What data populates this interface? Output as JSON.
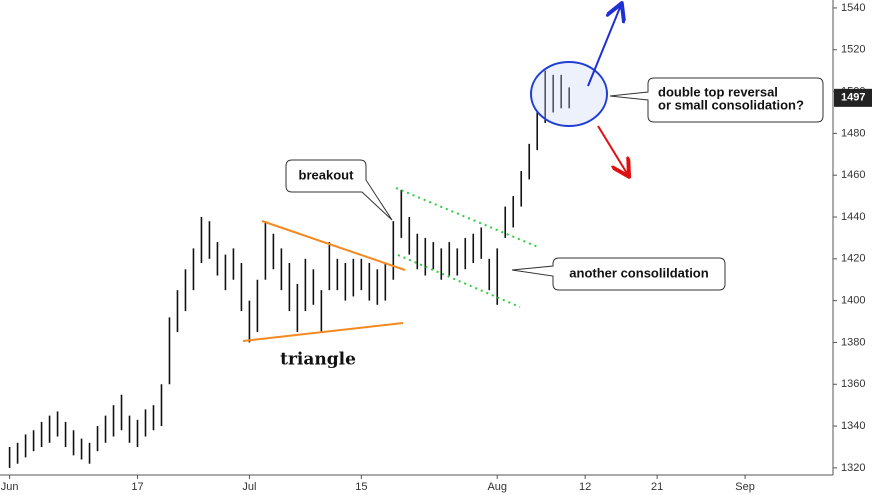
{
  "chart_data": {
    "type": "ohlc",
    "color": "#111111",
    "xlim": [
      -1.2,
      103
    ],
    "ylim": [
      1316.6,
      1543.8
    ],
    "xticks": [
      {
        "value": 0,
        "label": "Jun"
      },
      {
        "value": 16,
        "label": "17"
      },
      {
        "value": 30,
        "label": "Jul"
      },
      {
        "value": 44,
        "label": "15"
      },
      {
        "value": 61,
        "label": "Aug"
      },
      {
        "value": 72,
        "label": "12"
      },
      {
        "value": 81,
        "label": "21"
      },
      {
        "value": 92,
        "label": "Sep"
      }
    ],
    "yticks": [
      1320,
      1340,
      1360,
      1380,
      1400,
      1420,
      1440,
      1460,
      1480,
      1500,
      1520,
      1540
    ],
    "last_price": 1497,
    "x": [
      0,
      1,
      2,
      3,
      4,
      5,
      6,
      7,
      8,
      9,
      10,
      11,
      12,
      13,
      14,
      15,
      16,
      17,
      18,
      19,
      20,
      21,
      22,
      23,
      24,
      25,
      26,
      27,
      28,
      29,
      30,
      31,
      32,
      33,
      34,
      35,
      36,
      37,
      38,
      39,
      40,
      41,
      42,
      43,
      44,
      45,
      46,
      47,
      48,
      49,
      50,
      51,
      52,
      53,
      54,
      55,
      56,
      57,
      58,
      59,
      60,
      61,
      62,
      63,
      64,
      65,
      66,
      67,
      68,
      69,
      70
    ],
    "high": [
      1330,
      1332,
      1336,
      1338,
      1342,
      1345,
      1347,
      1342,
      1338,
      1334,
      1332,
      1340,
      1345,
      1350,
      1355,
      1345,
      1343,
      1348,
      1350,
      1360,
      1392,
      1405,
      1415,
      1425,
      1440,
      1438,
      1428,
      1422,
      1425,
      1418,
      1400,
      1410,
      1438,
      1432,
      1425,
      1418,
      1408,
      1420,
      1415,
      1405,
      1428,
      1420,
      1418,
      1420,
      1420,
      1418,
      1415,
      1418,
      1438,
      1453,
      1440,
      1432,
      1430,
      1428,
      1425,
      1428,
      1425,
      1430,
      1432,
      1435,
      1420,
      1425,
      1445,
      1450,
      1462,
      1475,
      1490,
      1510,
      1508,
      1508,
      1502
    ],
    "low": [
      1320,
      1322,
      1325,
      1328,
      1330,
      1332,
      1335,
      1330,
      1326,
      1324,
      1322,
      1328,
      1332,
      1335,
      1338,
      1332,
      1330,
      1335,
      1338,
      1340,
      1360,
      1385,
      1395,
      1405,
      1418,
      1420,
      1412,
      1405,
      1410,
      1395,
      1380,
      1385,
      1410,
      1415,
      1405,
      1395,
      1385,
      1395,
      1398,
      1385,
      1405,
      1405,
      1400,
      1402,
      1405,
      1400,
      1398,
      1400,
      1410,
      1430,
      1422,
      1415,
      1412,
      1415,
      1410,
      1412,
      1412,
      1415,
      1418,
      1420,
      1405,
      1398,
      1430,
      1435,
      1445,
      1458,
      1472,
      1485,
      1490,
      1492,
      1492
    ],
    "annotations": [
      "breakout",
      "another consolildation",
      "double top reversal",
      "or small consolidation?",
      "triangle"
    ]
  }
}
